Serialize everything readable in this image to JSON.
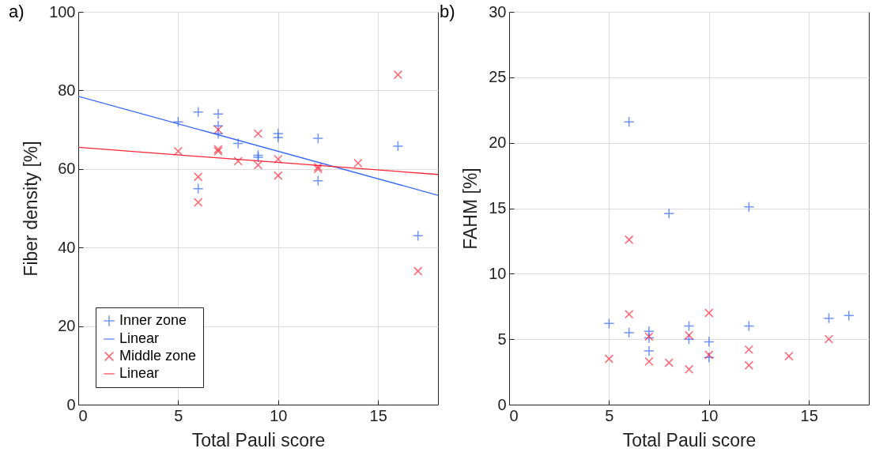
{
  "chart_data": [
    {
      "type": "scatter",
      "annotations": [
        "a)"
      ],
      "xlabel": "Total Pauli score",
      "ylabel": "Fiber density [%]",
      "xlim": [
        0,
        18
      ],
      "xticks": [
        0,
        5,
        10,
        15
      ],
      "ylim": [
        0,
        100
      ],
      "yticks": [
        0,
        20,
        40,
        60,
        80,
        100
      ],
      "grid": true,
      "legend": "bottom left",
      "series": [
        {
          "name": "Inner zone",
          "marker": "plus",
          "color": "#3366ff",
          "x": [
            5,
            6,
            6,
            7,
            7,
            7,
            8,
            9,
            9,
            10,
            10,
            12,
            12,
            16,
            17
          ],
          "values": [
            72,
            74.5,
            55,
            74,
            71,
            69,
            66.5,
            63.5,
            63,
            69,
            68,
            67.8,
            57,
            65.8,
            43
          ]
        },
        {
          "name": "Linear",
          "type": "line",
          "color": "#3366ff",
          "x": [
            0,
            18
          ],
          "values": [
            78.5,
            53.3
          ]
        },
        {
          "name": "Middle zone",
          "marker": "cross",
          "color": "#ff2233",
          "x": [
            5,
            6,
            6,
            7,
            7,
            7,
            8,
            9,
            9,
            10,
            10,
            12,
            12,
            14,
            16,
            17
          ],
          "values": [
            64.5,
            58,
            51.5,
            70,
            65,
            64.5,
            62,
            69,
            61,
            62.5,
            58.3,
            60.5,
            60,
            61.5,
            84,
            34
          ]
        },
        {
          "name": "Linear",
          "type": "line",
          "color": "#ff2233",
          "x": [
            0,
            18
          ],
          "values": [
            65.5,
            58.6
          ]
        }
      ]
    },
    {
      "type": "scatter",
      "annotations": [
        "b)"
      ],
      "xlabel": "Total Pauli score",
      "ylabel": "FAHM [%]",
      "xlim": [
        0,
        18
      ],
      "xticks": [
        0,
        5,
        10,
        15
      ],
      "ylim": [
        0,
        30
      ],
      "yticks": [
        0,
        5,
        10,
        15,
        20,
        25,
        30
      ],
      "grid": true,
      "series": [
        {
          "marker": "plus",
          "color": "#3366ff",
          "x": [
            5,
            6,
            6,
            7,
            7,
            7,
            8,
            9,
            9,
            10,
            10,
            12,
            12,
            16,
            17
          ],
          "values": [
            6.2,
            21.6,
            5.5,
            5.6,
            5.1,
            4.1,
            14.6,
            6,
            5,
            4.8,
            3.6,
            15.1,
            6,
            6.6,
            6.8
          ]
        },
        {
          "marker": "cross",
          "color": "#ff2233",
          "x": [
            5,
            6,
            6,
            7,
            7,
            8,
            9,
            9,
            10,
            10,
            12,
            12,
            14,
            16
          ],
          "values": [
            3.5,
            12.6,
            6.9,
            5.2,
            3.3,
            3.2,
            5.3,
            2.7,
            7,
            3.8,
            4.2,
            3,
            3.7,
            5
          ]
        }
      ]
    }
  ]
}
